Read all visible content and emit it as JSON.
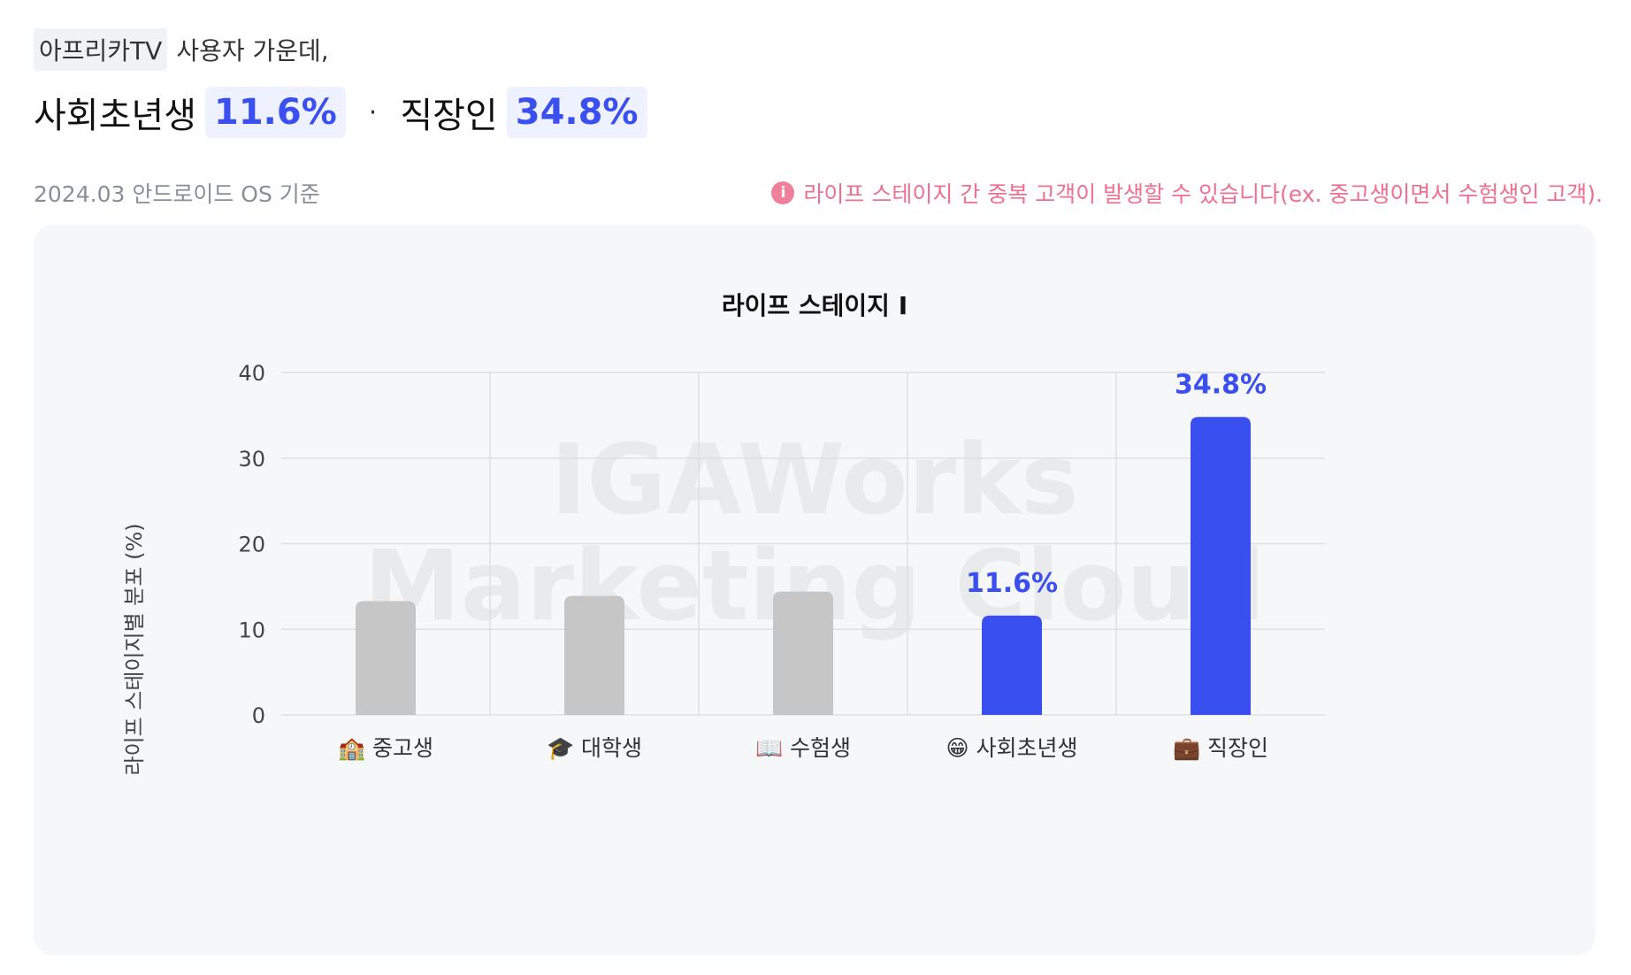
{
  "intro": {
    "app": "아프리카TV",
    "rest": "사용자 가운데,"
  },
  "headline": {
    "item1_label": "사회초년생",
    "item1_value": "11.6%",
    "separator": "·",
    "item2_label": "직장인",
    "item2_value": "34.8%"
  },
  "basis": "2024.03 안드로이드 OS 기준",
  "notice": {
    "icon": "info-icon",
    "text": "라이프 스테이지 간 중복 고객이 발생할 수 있습니다(ex. 중고생이면서 수험생인 고객)."
  },
  "watermark": {
    "line1": "IGAWorks",
    "line2": "Marketing Cloud"
  },
  "colors": {
    "highlight": "#3a4ff0",
    "muted": "#c6c6c6",
    "notice": "#ee6f8f"
  },
  "chart_data": {
    "type": "bar",
    "title": "라이프 스테이지 I",
    "ylabel": "라이프 스테이지별 분포 (%)",
    "xlabel": "",
    "ylim": [
      0,
      40
    ],
    "yticks": [
      0,
      10,
      20,
      30,
      40
    ],
    "grid": true,
    "categories": [
      "🏫 중고생",
      "🎓 대학생",
      "📖 수험생",
      "😁 사회초년생",
      "💼 직장인"
    ],
    "values": [
      13.3,
      13.9,
      14.4,
      11.6,
      34.8
    ],
    "highlighted": [
      false,
      false,
      false,
      true,
      true
    ],
    "data_labels": [
      "",
      "",
      "",
      "11.6%",
      "34.8%"
    ]
  }
}
